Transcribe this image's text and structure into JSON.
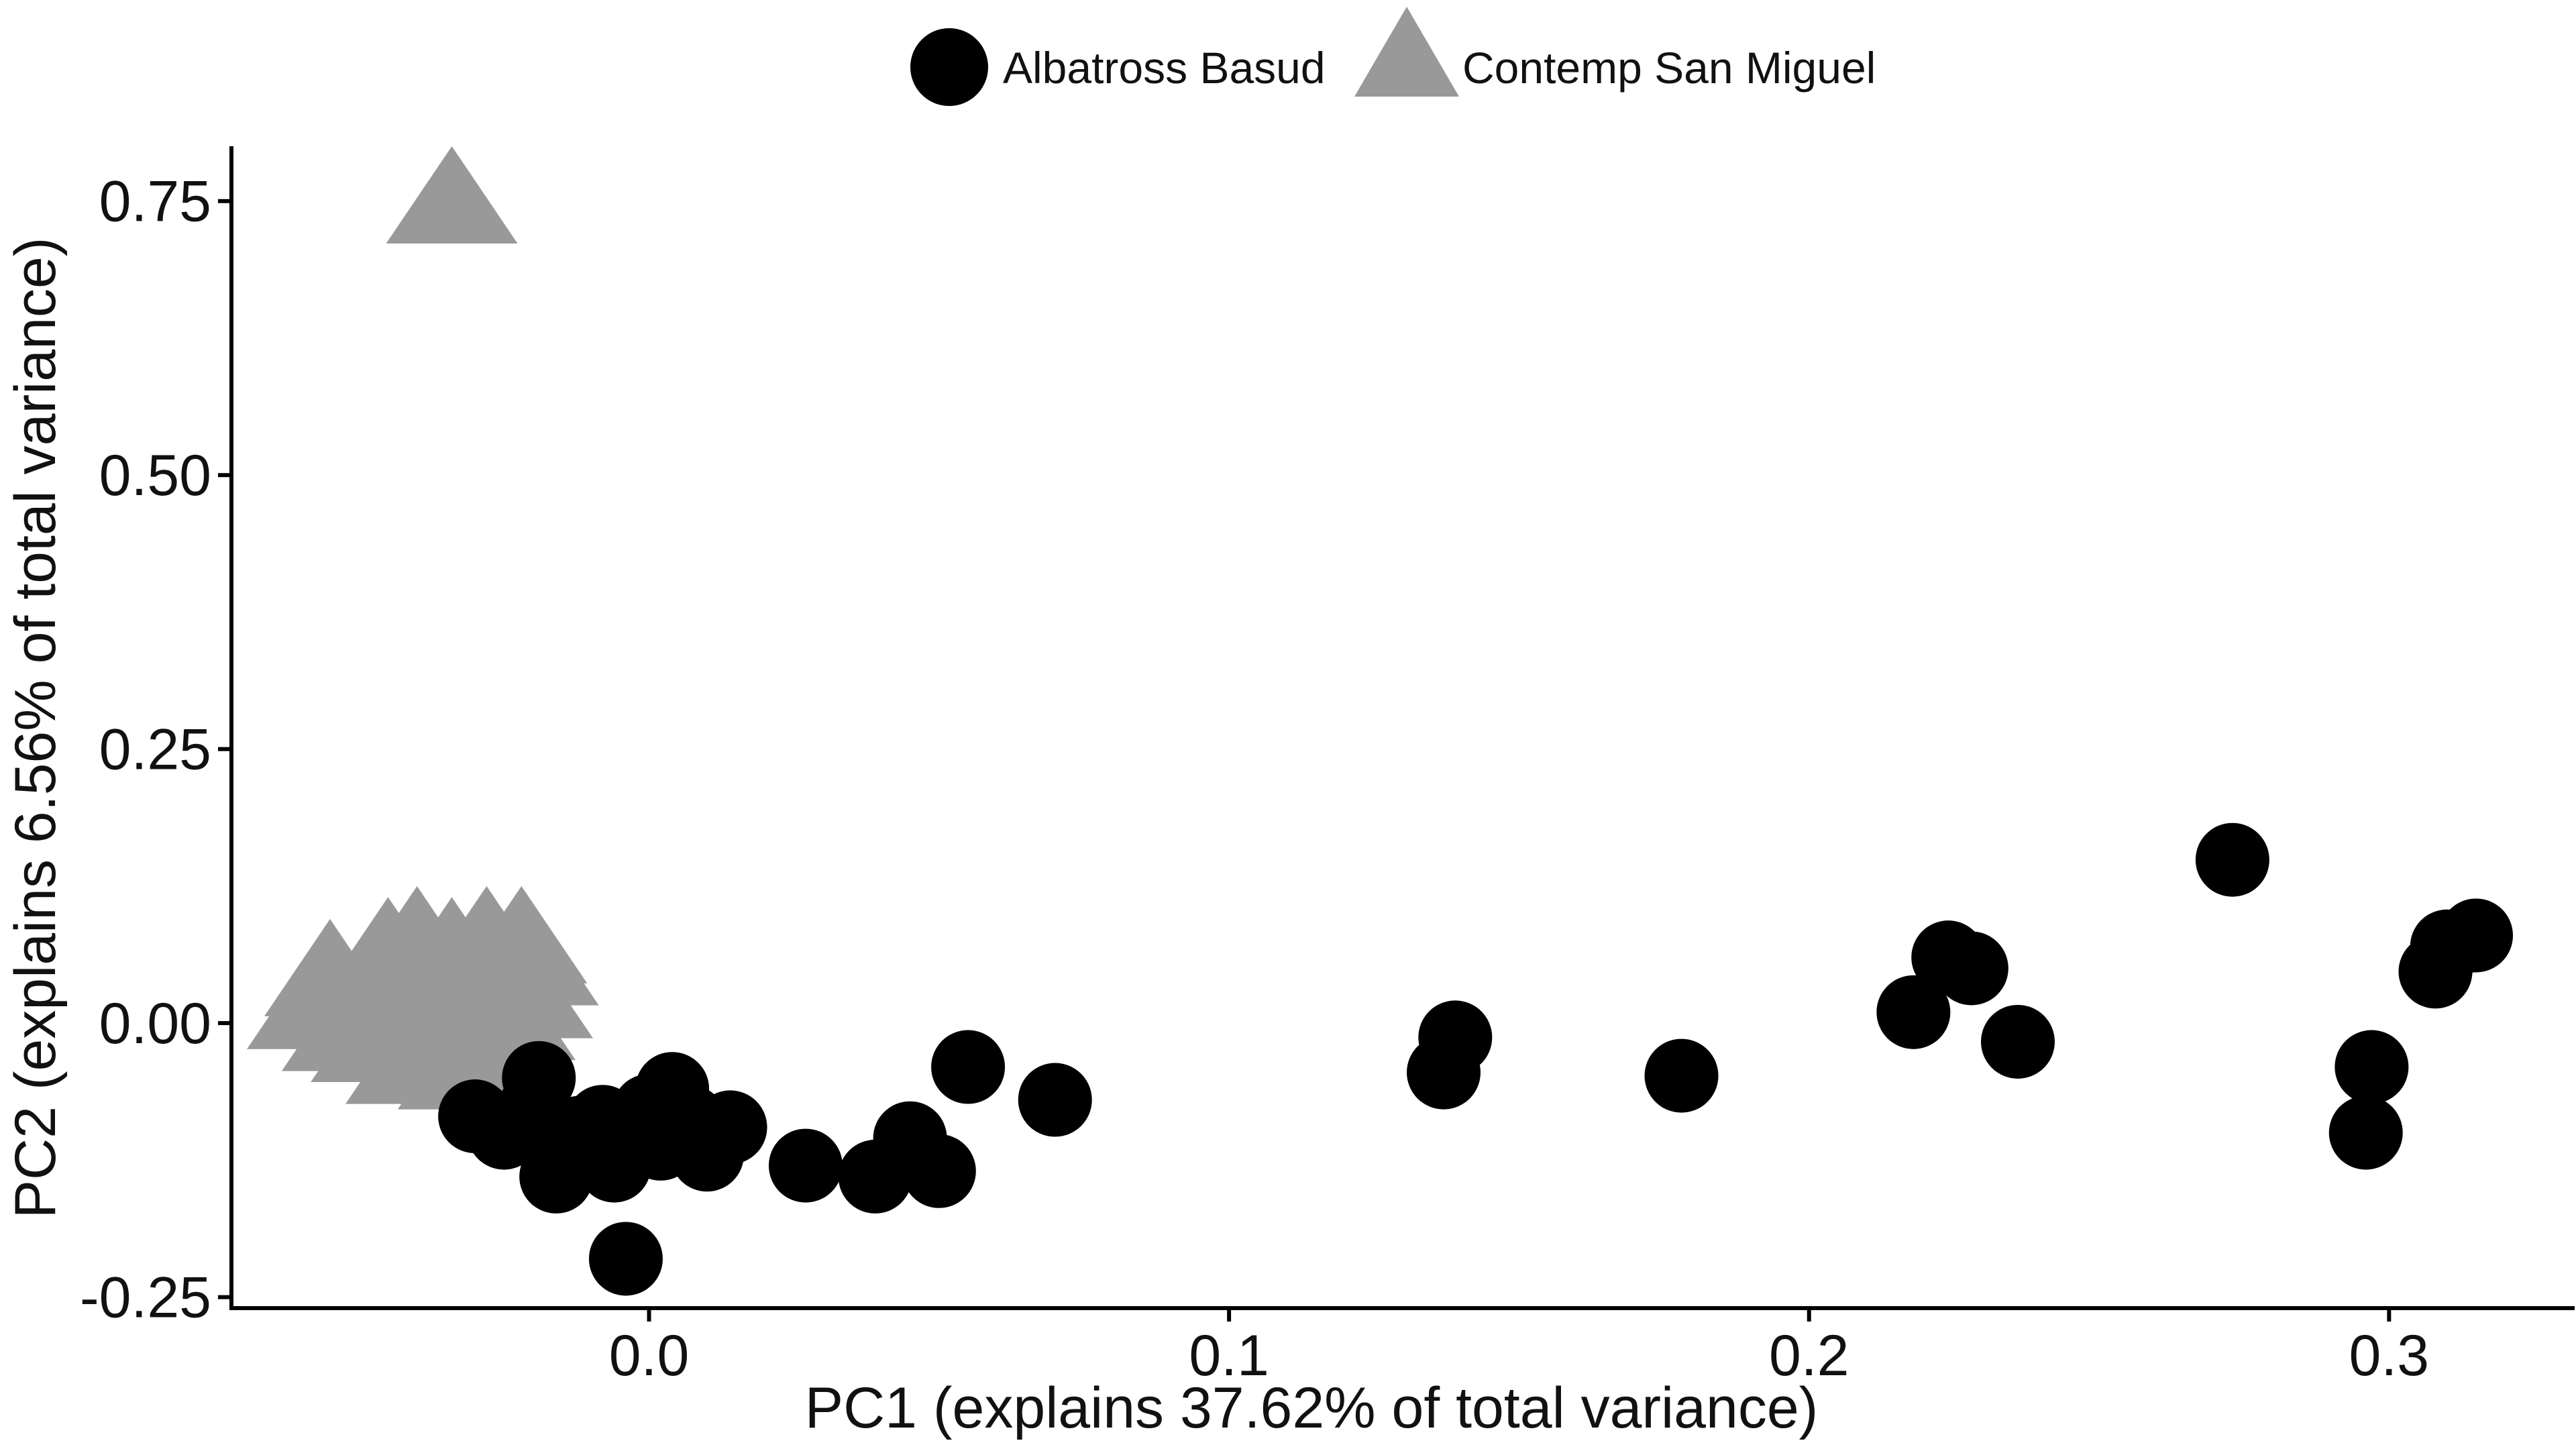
{
  "chart_data": {
    "type": "scatter",
    "title": "",
    "xlabel": "PC1 (explains 37.62% of total variance)",
    "ylabel": "PC2 (explains 6.56% of total variance)",
    "xlim": [
      -0.072,
      0.332
    ],
    "ylim": [
      -0.26,
      0.8
    ],
    "x_ticks": [
      0.0,
      0.1,
      0.2,
      0.3
    ],
    "x_tick_labels": [
      "0.0",
      "0.1",
      "0.2",
      "0.3"
    ],
    "y_ticks": [
      -0.25,
      0.0,
      0.25,
      0.5,
      0.75
    ],
    "y_tick_labels": [
      "-0.25",
      "0.00",
      "0.25",
      "0.50",
      "0.75"
    ],
    "grid": false,
    "legend": {
      "position": "top",
      "entries": [
        {
          "label": "Albatross Basud",
          "shape": "circle",
          "color": "#000000"
        },
        {
          "label": "Contemp San Miguel",
          "shape": "triangle",
          "color": "#999999"
        }
      ]
    },
    "series": [
      {
        "name": "Contemp San Miguel",
        "shape": "triangle",
        "color": "#999999",
        "points": [
          [
            -0.034,
            0.745
          ],
          [
            -0.055,
            0.04
          ],
          [
            -0.058,
            0.01
          ],
          [
            -0.052,
            -0.01
          ],
          [
            -0.049,
            0.02
          ],
          [
            -0.047,
            -0.02
          ],
          [
            -0.045,
            0.06
          ],
          [
            -0.043,
            0.03
          ],
          [
            -0.042,
            -0.005
          ],
          [
            -0.04,
            0.07
          ],
          [
            -0.038,
            0.04
          ],
          [
            -0.037,
            -0.03
          ],
          [
            -0.036,
            0.02
          ],
          [
            -0.034,
            0.06
          ],
          [
            -0.033,
            0.0
          ],
          [
            -0.031,
            0.03
          ],
          [
            -0.029,
            -0.02
          ],
          [
            -0.028,
            0.07
          ],
          [
            -0.027,
            0.01
          ],
          [
            -0.025,
            0.04
          ],
          [
            -0.024,
            0.0
          ],
          [
            -0.022,
            0.07
          ],
          [
            -0.021,
            0.02
          ],
          [
            -0.02,
            0.05
          ],
          [
            -0.05,
            0.0
          ],
          [
            -0.041,
            -0.04
          ],
          [
            -0.032,
            -0.045
          ],
          [
            -0.046,
            0.005
          ],
          [
            -0.039,
            0.015
          ],
          [
            -0.026,
            -0.01
          ]
        ]
      },
      {
        "name": "Albatross Basud",
        "shape": "circle",
        "color": "#000000",
        "points": [
          [
            -0.019,
            -0.05
          ],
          [
            -0.03,
            -0.085
          ],
          [
            -0.025,
            -0.1
          ],
          [
            -0.02,
            -0.08
          ],
          [
            -0.016,
            -0.14
          ],
          [
            -0.012,
            -0.1
          ],
          [
            -0.01,
            -0.12
          ],
          [
            -0.008,
            -0.09
          ],
          [
            -0.006,
            -0.13
          ],
          [
            -0.004,
            -0.215
          ],
          [
            -0.002,
            -0.1
          ],
          [
            0.0,
            -0.08
          ],
          [
            0.002,
            -0.11
          ],
          [
            0.004,
            -0.06
          ],
          [
            0.007,
            -0.09
          ],
          [
            0.01,
            -0.12
          ],
          [
            0.014,
            -0.095
          ],
          [
            0.027,
            -0.13
          ],
          [
            0.039,
            -0.14
          ],
          [
            0.045,
            -0.105
          ],
          [
            0.05,
            -0.135
          ],
          [
            0.055,
            -0.04
          ],
          [
            0.07,
            -0.07
          ],
          [
            0.137,
            -0.045
          ],
          [
            0.139,
            -0.013
          ],
          [
            0.178,
            -0.048
          ],
          [
            0.218,
            0.01
          ],
          [
            0.224,
            0.06
          ],
          [
            0.228,
            0.05
          ],
          [
            0.236,
            -0.017
          ],
          [
            0.273,
            0.149
          ],
          [
            0.296,
            -0.1
          ],
          [
            0.297,
            -0.04
          ],
          [
            0.308,
            0.047
          ],
          [
            0.31,
            0.07
          ],
          [
            0.315,
            0.08
          ]
        ]
      }
    ]
  }
}
